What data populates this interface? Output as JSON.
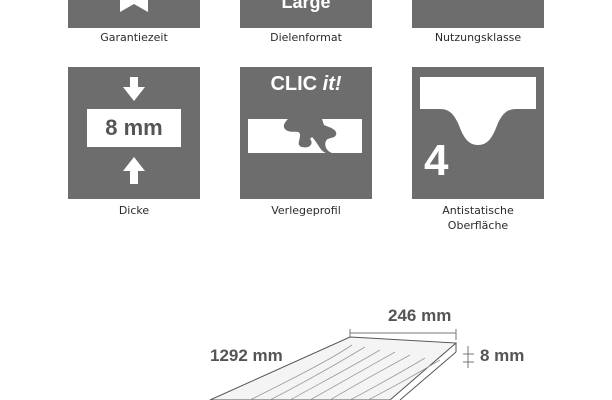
{
  "features": {
    "row1": {
      "warranty_caption": "Garantiezeit",
      "format_value": "Large",
      "format_caption": "Dielenformat",
      "usage_caption": "Nutzungsklasse"
    },
    "thickness": {
      "value": "8 mm",
      "caption": "Dicke"
    },
    "laying": {
      "brand": "CLIC",
      "brand_suffix": "it!",
      "caption": "Verlegeprofil"
    },
    "antistatic": {
      "class_value": "4",
      "caption_line1": "Antistatische",
      "caption_line2": "Oberfläche"
    }
  },
  "dimensions": {
    "width": "246 mm",
    "length": "1292 mm",
    "thickness": "8 mm"
  },
  "colors": {
    "tile": "#6d6d6d",
    "text": "#2b2b2b",
    "dim_text": "#555555"
  },
  "icons": [
    "bookmark-ribbon-icon",
    "arrow-down-icon",
    "arrow-up-icon",
    "click-joint-profile-icon",
    "surface-dip-icon",
    "plank-drawing-icon"
  ]
}
